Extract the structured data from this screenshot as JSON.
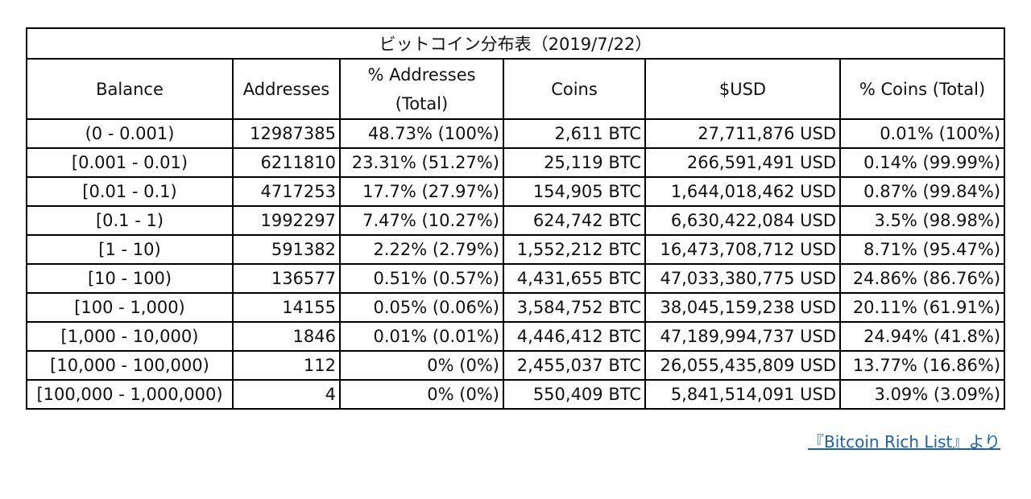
{
  "table": {
    "title": "ビットコイン分布表（2019/7/22）",
    "headers": [
      "Balance",
      "Addresses",
      "% Addresses (Total)",
      "Coins",
      "$USD",
      "% Coins (Total)"
    ],
    "rows": [
      [
        "(0 - 0.001)",
        "12987385",
        "48.73% (100%)",
        "2,611 BTC",
        "27,711,876 USD",
        "0.01% (100%)"
      ],
      [
        "[0.001 - 0.01)",
        "6211810",
        "23.31% (51.27%)",
        "25,119 BTC",
        "266,591,491 USD",
        "0.14% (99.99%)"
      ],
      [
        "[0.01 - 0.1)",
        "4717253",
        "17.7% (27.97%)",
        "154,905 BTC",
        "1,644,018,462 USD",
        "0.87% (99.84%)"
      ],
      [
        "[0.1 - 1)",
        "1992297",
        "7.47% (10.27%)",
        "624,742 BTC",
        "6,630,422,084 USD",
        "3.5% (98.98%)"
      ],
      [
        "[1 - 10)",
        "591382",
        "2.22% (2.79%)",
        "1,552,212 BTC",
        "16,473,708,712 USD",
        "8.71% (95.47%)"
      ],
      [
        "[10 - 100)",
        "136577",
        "0.51% (0.57%)",
        "4,431,655 BTC",
        "47,033,380,775 USD",
        "24.86% (86.76%)"
      ],
      [
        "[100 - 1,000)",
        "14155",
        "0.05% (0.06%)",
        "3,584,752 BTC",
        "38,045,159,238 USD",
        "20.11% (61.91%)"
      ],
      [
        "[1,000 - 10,000)",
        "1846",
        "0.01% (0.01%)",
        "4,446,412 BTC",
        "47,189,994,737 USD",
        "24.94% (41.8%)"
      ],
      [
        "[10,000 - 100,000)",
        "112",
        "0% (0%)",
        "2,455,037 BTC",
        "26,055,435,809 USD",
        "13.77% (16.86%)"
      ],
      [
        "[100,000 - 1,000,000)",
        "4",
        "0% (0%)",
        "550,409 BTC",
        "5,841,514,091 USD",
        "3.09% (3.09%)"
      ]
    ]
  },
  "source": {
    "link_text": "『Bitcoin Rich List』より"
  }
}
